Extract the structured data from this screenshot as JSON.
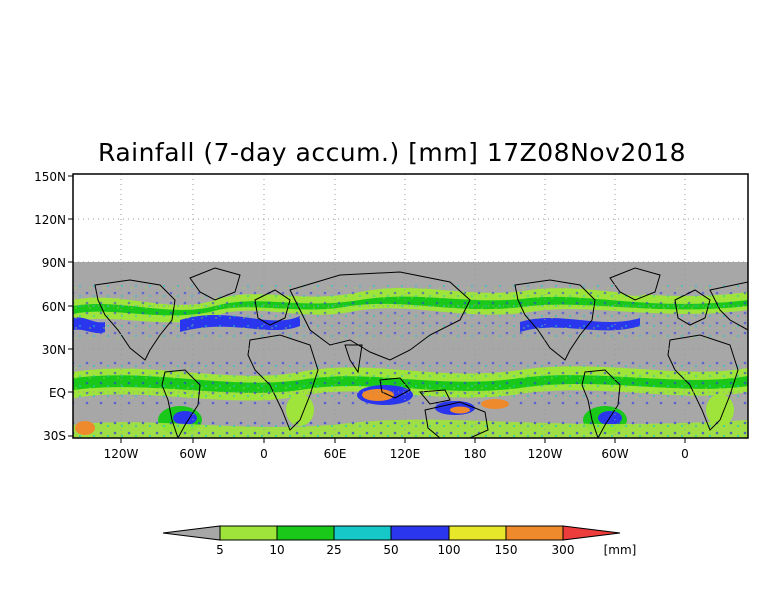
{
  "title": "Rainfall (7-day accum.) [mm] 17Z08Nov2018",
  "y_axis_labels": [
    "150N",
    "120N",
    "90N",
    "60N",
    "30N",
    "EQ",
    "30S"
  ],
  "x_axis_labels": [
    "120W",
    "60W",
    "0",
    "60E",
    "120E",
    "180",
    "120W",
    "60W",
    "0"
  ],
  "colorbar": {
    "colors": [
      "#a7a7a7",
      "#9ee43a",
      "#19c819",
      "#16c8c8",
      "#2a36ee",
      "#e6e62a",
      "#ef8a2c",
      "#ec3c3c"
    ],
    "tick_labels": [
      "5",
      "10",
      "25",
      "50",
      "100",
      "150",
      "300"
    ],
    "unit": "[mm]"
  }
}
